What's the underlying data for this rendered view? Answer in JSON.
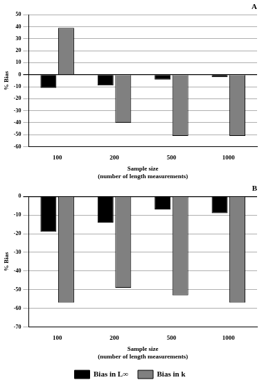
{
  "chart_data": [
    {
      "type": "bar",
      "title": "A",
      "categories": [
        "100",
        "200",
        "500",
        "1000"
      ],
      "series": [
        {
          "name": "Bias in L∞",
          "color": "#000000",
          "values": [
            -11,
            -9,
            -4,
            -2
          ]
        },
        {
          "name": "Bias in k",
          "color": "#808080",
          "values": [
            39,
            -40,
            -51,
            -51
          ]
        }
      ],
      "x_label": [
        "Sample size",
        "(number of length measurements)"
      ],
      "y_label": "% Bias",
      "ylim": [
        -60,
        50
      ],
      "yticks": [
        -60,
        -50,
        -40,
        -30,
        -20,
        -10,
        0,
        10,
        20,
        30,
        40,
        50
      ],
      "grid": true
    },
    {
      "type": "bar",
      "title": "B",
      "categories": [
        "100",
        "200",
        "500",
        "1000"
      ],
      "series": [
        {
          "name": "Bias in L∞",
          "color": "#000000",
          "values": [
            -19,
            -14,
            -7,
            -9
          ]
        },
        {
          "name": "Bias in k",
          "color": "#808080",
          "values": [
            -57,
            -49,
            -53,
            -57
          ]
        }
      ],
      "x_label": [
        "Sample size",
        "(number of length measurements)"
      ],
      "y_label": "% Bias",
      "ylim": [
        -70,
        0
      ],
      "yticks": [
        -70,
        -60,
        -50,
        -40,
        -30,
        -20,
        -10,
        0
      ],
      "grid": true,
      "legend": "bottom"
    }
  ]
}
